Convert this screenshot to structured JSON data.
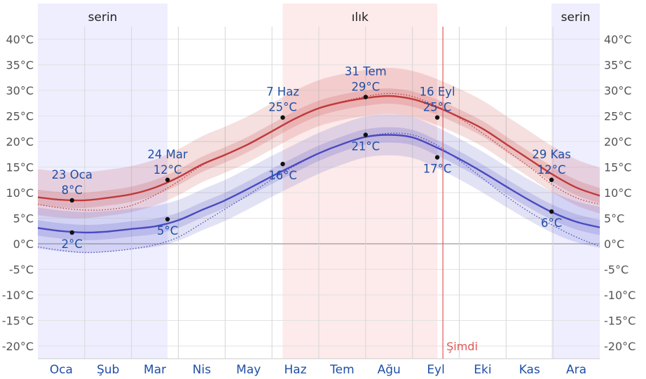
{
  "chart_data": {
    "type": "line",
    "x_unit": "month",
    "y_unit": "°C",
    "ylim": [
      -23,
      46
    ],
    "yticks": [
      40,
      35,
      30,
      25,
      20,
      15,
      10,
      5,
      0,
      -5,
      -10,
      -15,
      -20
    ],
    "ytick_labels": [
      "40°C",
      "35°C",
      "30°C",
      "25°C",
      "20°C",
      "15°C",
      "10°C",
      "5°C",
      "0°C",
      "-5°C",
      "-10°C",
      "-15°C",
      "-20°C"
    ],
    "months": [
      "Oca",
      "Şub",
      "Mar",
      "Nis",
      "May",
      "Haz",
      "Tem",
      "Ağu",
      "Eyl",
      "Eki",
      "Kas",
      "Ara"
    ],
    "seasons": [
      {
        "label": "serin",
        "start": 0,
        "end": 2.77,
        "color": "#eeeeff"
      },
      {
        "label": "ılık",
        "start": 5.23,
        "end": 8.53,
        "color": "#fdeaea"
      },
      {
        "label": "serin",
        "start": 10.97,
        "end": 12,
        "color": "#eeeeff"
      }
    ],
    "now": {
      "label": "Şimdi",
      "x": 8.65
    },
    "x": [
      0,
      0.5,
      1,
      1.5,
      2,
      2.5,
      3,
      3.5,
      4,
      4.5,
      5,
      5.5,
      6,
      6.5,
      7,
      7.5,
      8,
      8.5,
      9,
      9.5,
      10,
      10.5,
      11,
      11.5,
      12
    ],
    "series": [
      {
        "color": "#c0393b",
        "values": [
          9.1,
          8.6,
          8.5,
          9.0,
          9.7,
          11.0,
          13.0,
          15.5,
          17.4,
          19.5,
          22.0,
          24.5,
          26.5,
          27.7,
          28.5,
          28.9,
          28.3,
          26.8,
          24.8,
          22.5,
          19.5,
          16.5,
          13.5,
          11.0,
          9.4
        ],
        "band_inner": [
          [
            7.6,
            10.6
          ],
          [
            7.1,
            10.1
          ],
          [
            7.0,
            10.0
          ],
          [
            7.5,
            10.5
          ],
          [
            8.2,
            11.2
          ],
          [
            9.5,
            12.5
          ],
          [
            11.5,
            14.5
          ],
          [
            14.0,
            17.0
          ],
          [
            15.9,
            18.9
          ],
          [
            18.0,
            21.0
          ],
          [
            20.5,
            23.5
          ],
          [
            23.0,
            26.0
          ],
          [
            25.0,
            28.0
          ],
          [
            26.2,
            29.2
          ],
          [
            27.0,
            30.0
          ],
          [
            27.4,
            30.4
          ],
          [
            26.8,
            29.8
          ],
          [
            25.3,
            28.3
          ],
          [
            23.3,
            26.3
          ],
          [
            21.0,
            24.0
          ],
          [
            18.0,
            21.0
          ],
          [
            15.0,
            18.0
          ],
          [
            12.0,
            15.0
          ],
          [
            9.5,
            12.5
          ],
          [
            7.9,
            10.9
          ]
        ],
        "band_outer": [
          [
            5.6,
            14.6
          ],
          [
            5.1,
            14.1
          ],
          [
            5.0,
            14.0
          ],
          [
            5.5,
            14.5
          ],
          [
            6.2,
            15.2
          ],
          [
            7.5,
            16.5
          ],
          [
            9.5,
            18.5
          ],
          [
            12.0,
            21.0
          ],
          [
            13.9,
            22.9
          ],
          [
            16.0,
            25.0
          ],
          [
            18.5,
            27.5
          ],
          [
            21.0,
            30.0
          ],
          [
            23.0,
            32.0
          ],
          [
            24.2,
            33.2
          ],
          [
            25.0,
            34.0
          ],
          [
            25.4,
            34.4
          ],
          [
            24.8,
            33.8
          ],
          [
            23.3,
            32.3
          ],
          [
            21.3,
            30.3
          ],
          [
            19.0,
            28.0
          ],
          [
            16.0,
            25.0
          ],
          [
            13.0,
            22.0
          ],
          [
            10.0,
            19.0
          ],
          [
            7.5,
            16.5
          ],
          [
            5.9,
            14.9
          ]
        ],
        "dotted": [
          7.7,
          7.0,
          6.6,
          6.7,
          7.5,
          9.5,
          12.2,
          15.3,
          17.4,
          19.6,
          22.1,
          24.6,
          26.6,
          27.8,
          28.8,
          29.4,
          28.8,
          27.0,
          24.6,
          21.6,
          18.3,
          15.0,
          11.5,
          9.0,
          7.7
        ]
      },
      {
        "color": "#4a4ac0",
        "values": [
          3.1,
          2.5,
          2.2,
          2.4,
          2.9,
          3.4,
          4.6,
          6.6,
          8.5,
          10.8,
          13.2,
          15.5,
          17.7,
          19.5,
          20.9,
          21.3,
          20.8,
          18.9,
          16.6,
          14.0,
          11.2,
          8.5,
          6.1,
          4.3,
          3.2
        ],
        "band_inner": [
          [
            1.6,
            4.6
          ],
          [
            1.0,
            4.0
          ],
          [
            0.7,
            3.7
          ],
          [
            0.9,
            3.9
          ],
          [
            1.4,
            4.4
          ],
          [
            1.9,
            4.9
          ],
          [
            3.1,
            6.1
          ],
          [
            5.1,
            8.1
          ],
          [
            7.0,
            10.0
          ],
          [
            9.3,
            12.3
          ],
          [
            11.7,
            14.7
          ],
          [
            14.0,
            17.0
          ],
          [
            16.2,
            19.2
          ],
          [
            18.0,
            21.0
          ],
          [
            19.4,
            22.4
          ],
          [
            19.8,
            22.8
          ],
          [
            19.3,
            22.3
          ],
          [
            17.4,
            20.4
          ],
          [
            15.1,
            18.1
          ],
          [
            12.5,
            15.5
          ],
          [
            9.7,
            12.7
          ],
          [
            7.0,
            10.0
          ],
          [
            4.6,
            7.6
          ],
          [
            2.8,
            5.8
          ],
          [
            1.7,
            4.7
          ]
        ],
        "band_outer": [
          [
            -0.9,
            7.1
          ],
          [
            -1.5,
            6.5
          ],
          [
            -1.8,
            6.2
          ],
          [
            -1.6,
            6.4
          ],
          [
            -1.1,
            6.9
          ],
          [
            -0.6,
            7.4
          ],
          [
            0.6,
            8.6
          ],
          [
            2.6,
            10.6
          ],
          [
            4.5,
            12.5
          ],
          [
            6.8,
            14.8
          ],
          [
            9.2,
            17.2
          ],
          [
            11.5,
            19.5
          ],
          [
            13.7,
            21.7
          ],
          [
            15.5,
            23.5
          ],
          [
            16.9,
            24.9
          ],
          [
            17.3,
            25.3
          ],
          [
            16.8,
            24.8
          ],
          [
            14.9,
            22.9
          ],
          [
            12.6,
            20.6
          ],
          [
            10.0,
            18.0
          ],
          [
            7.2,
            15.2
          ],
          [
            4.5,
            12.5
          ],
          [
            2.1,
            10.1
          ],
          [
            0.3,
            8.3
          ],
          [
            -0.8,
            7.2
          ]
        ],
        "dotted": [
          -0.6,
          -1.3,
          -1.7,
          -1.5,
          -1.0,
          -0.2,
          1.3,
          4.0,
          6.8,
          9.6,
          12.6,
          15.3,
          17.6,
          19.5,
          20.9,
          21.6,
          21.3,
          19.4,
          16.3,
          12.8,
          9.3,
          6.2,
          3.6,
          1.3,
          -0.5
        ]
      }
    ],
    "annotations": [
      {
        "date": "23 Oca",
        "value": "8°C",
        "x": 0.73,
        "y": 8.5,
        "text_above": true
      },
      {
        "date": "",
        "value": "2°C",
        "x": 0.73,
        "y": 2.2,
        "text_above": false
      },
      {
        "date": "24 Mar",
        "value": "12°C",
        "x": 2.77,
        "y": 12.5,
        "text_above": true
      },
      {
        "date": "",
        "value": "5°C",
        "x": 2.77,
        "y": 4.8,
        "text_above": false
      },
      {
        "date": "7 Haz",
        "value": "25°C",
        "x": 5.23,
        "y": 24.7,
        "text_above": true
      },
      {
        "date": "",
        "value": "16°C",
        "x": 5.23,
        "y": 15.6,
        "text_above": false
      },
      {
        "date": "31 Tem",
        "value": "29°C",
        "x": 7.0,
        "y": 28.7,
        "text_above": true
      },
      {
        "date": "",
        "value": "21°C",
        "x": 7.0,
        "y": 21.3,
        "text_above": false
      },
      {
        "date": "16 Eyl",
        "value": "25°C",
        "x": 8.53,
        "y": 24.7,
        "text_above": true
      },
      {
        "date": "",
        "value": "17°C",
        "x": 8.53,
        "y": 16.9,
        "text_above": false
      },
      {
        "date": "29 Kas",
        "value": "12°C",
        "x": 10.97,
        "y": 12.5,
        "text_above": true
      },
      {
        "date": "",
        "value": "6°C",
        "x": 10.97,
        "y": 6.3,
        "text_above": false
      }
    ]
  }
}
